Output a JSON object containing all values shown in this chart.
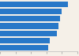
{
  "values": [
    0.88,
    0.8,
    0.78,
    0.76,
    0.73,
    0.64,
    0.62
  ],
  "bar_color": "#2878c8",
  "background_color": "#f5f0e8",
  "xlim": [
    0,
    1.0
  ],
  "bar_height": 0.78,
  "ylim": [
    -0.5,
    6.5
  ]
}
